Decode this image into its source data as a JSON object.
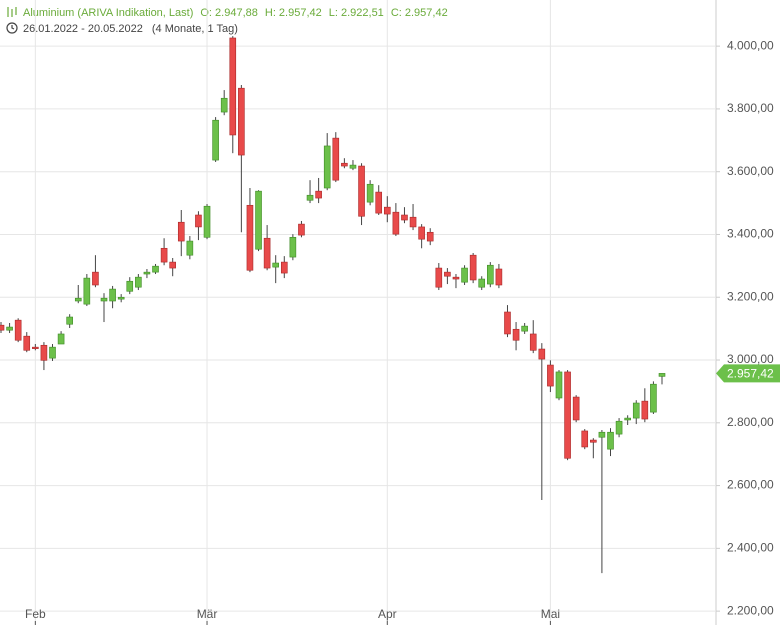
{
  "chart_data": {
    "type": "candlestick",
    "title": "Aluminium (ARIVA Indikation, Last)",
    "ohlc_labels": [
      "O: 2.947,88",
      "H: 2.957,42",
      "L: 2.922,51",
      "C: 2.957,42"
    ],
    "date_range": "26.01.2022 - 20.05.2022",
    "period": "(4 Monate, 1 Tag)",
    "last_label": "2.957,42",
    "categories": [
      null,
      null,
      null,
      null,
      "Feb",
      null,
      null,
      null,
      null,
      null,
      null,
      null,
      null,
      null,
      null,
      null,
      null,
      null,
      null,
      null,
      null,
      null,
      null,
      null,
      "Mär",
      null,
      null,
      null,
      null,
      null,
      null,
      null,
      null,
      null,
      null,
      null,
      null,
      null,
      null,
      null,
      null,
      null,
      null,
      null,
      null,
      "Apr",
      null,
      null,
      null,
      null,
      null,
      null,
      null,
      null,
      null,
      null,
      null,
      null,
      null,
      null,
      null,
      null,
      null,
      null,
      "Mai",
      null,
      null,
      null,
      null,
      null,
      null,
      null,
      null,
      null,
      null,
      null,
      null,
      null
    ],
    "open": [
      3111,
      3095,
      3127,
      3076,
      3041,
      3047,
      3006,
      3051,
      3114,
      3188,
      3178,
      3280,
      3188,
      3188,
      3194,
      3219,
      3232,
      3274,
      3280,
      3356,
      3312,
      3439,
      3334,
      3462,
      3391,
      3637,
      3790,
      4026,
      3866,
      3493,
      3353,
      3388,
      3296,
      3312,
      3328,
      3433,
      3509,
      3538,
      3548,
      3707,
      3627,
      3611,
      3618,
      3503,
      3535,
      3487,
      3471,
      3462,
      3455,
      3424,
      3407,
      3293,
      3280,
      3264,
      3248,
      3334,
      3232,
      3242,
      3290,
      3153,
      3098,
      3092,
      3083,
      3035,
      2984,
      2879,
      2962,
      2882,
      2774,
      2745,
      2754,
      2716,
      2764,
      2809,
      2815,
      2869,
      2834,
      2947.88
    ],
    "high": [
      3121,
      3118,
      3133,
      3089,
      3051,
      3057,
      3051,
      3092,
      3146,
      3239,
      3274,
      3334,
      3213,
      3236,
      3210,
      3264,
      3274,
      3290,
      3306,
      3388,
      3325,
      3478,
      3395,
      3474,
      3497,
      3774,
      3860,
      4032,
      3876,
      3548,
      3541,
      3430,
      3334,
      3331,
      3401,
      3443,
      3573,
      3580,
      3723,
      3726,
      3643,
      3637,
      3627,
      3573,
      3557,
      3522,
      3500,
      3487,
      3497,
      3433,
      3420,
      3309,
      3293,
      3274,
      3302,
      3341,
      3267,
      3312,
      3306,
      3175,
      3121,
      3118,
      3127,
      3054,
      2999,
      2968,
      2968,
      2888,
      2780,
      2751,
      2777,
      2783,
      2815,
      2824,
      2872,
      2910,
      2932,
      2957.42
    ],
    "low": [
      3086,
      3086,
      3057,
      3025,
      3031,
      2968,
      2997,
      3057,
      3102,
      3181,
      3172,
      3232,
      3121,
      3165,
      3184,
      3210,
      3223,
      3261,
      3274,
      3302,
      3267,
      3331,
      3321,
      3382,
      3385,
      3631,
      3780,
      3659,
      3407,
      3280,
      3347,
      3286,
      3245,
      3261,
      3318,
      3391,
      3500,
      3500,
      3541,
      3567,
      3611,
      3605,
      3430,
      3493,
      3462,
      3439,
      3395,
      3436,
      3414,
      3356,
      3366,
      3223,
      3242,
      3229,
      3239,
      3245,
      3223,
      3232,
      3229,
      3073,
      3031,
      3083,
      3022,
      2554,
      2898,
      2872,
      2681,
      2802,
      2716,
      2687,
      2321,
      2694,
      2754,
      2793,
      2796,
      2802,
      2828,
      2922.51
    ],
    "close": [
      3095,
      3105,
      3063,
      3031,
      3038,
      2999,
      3041,
      3083,
      3137,
      3197,
      3261,
      3239,
      3197,
      3226,
      3200,
      3251,
      3264,
      3280,
      3299,
      3312,
      3293,
      3379,
      3379,
      3424,
      3490,
      3764,
      3834,
      3717,
      3653,
      3286,
      3538,
      3293,
      3309,
      3277,
      3391,
      3398,
      3525,
      3516,
      3682,
      3573,
      3618,
      3621,
      3458,
      3560,
      3468,
      3465,
      3401,
      3446,
      3424,
      3385,
      3379,
      3232,
      3267,
      3258,
      3293,
      3255,
      3258,
      3302,
      3239,
      3083,
      3063,
      3108,
      3031,
      3003,
      2917,
      2962,
      2687,
      2809,
      2723,
      2738,
      2770,
      2770,
      2805,
      2815,
      2863,
      2812,
      2923,
      2957.42
    ],
    "up_color": "#6cc04a",
    "down_color": "#e84a4a",
    "ylim": [
      2159,
      4147
    ],
    "yticks": [
      {
        "value": 2200,
        "label": "2.200,00"
      },
      {
        "value": 2400,
        "label": "2.400,00"
      },
      {
        "value": 2600,
        "label": "2.600,00"
      },
      {
        "value": 2800,
        "label": "2.800,00"
      },
      {
        "value": 3000,
        "label": "3.000,00"
      },
      {
        "value": 3200,
        "label": "3.200,00"
      },
      {
        "value": 3400,
        "label": "3.400,00"
      },
      {
        "value": 3600,
        "label": "3.600,00"
      },
      {
        "value": 3800,
        "label": "3.800,00"
      },
      {
        "value": 4000,
        "label": "4.000,00"
      }
    ],
    "grid": true
  }
}
